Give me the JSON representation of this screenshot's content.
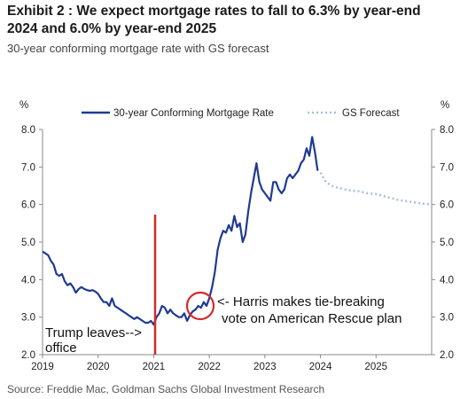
{
  "header": {
    "title": "Exhibit 2 : We expect mortgage rates to fall to 6.3% by year-end 2024 and 6.0% by year-end 2025",
    "subtitle": "30-year conforming mortgage rate with GS forecast"
  },
  "footer": {
    "source": "Source: Freddie Mac, Goldman Sachs Global Investment Research"
  },
  "chart_data": {
    "type": "line",
    "title": "Exhibit 2 : We expect mortgage rates to fall to 6.3% by year-end 2024 and 6.0% by year-end 2025",
    "subtitle": "30-year conforming mortgage rate with GS forecast",
    "ylabel_left": "%",
    "ylabel_right": "%",
    "xlim": [
      2019.0,
      2026.0
    ],
    "ylim": [
      2.0,
      8.0
    ],
    "x_ticks": [
      "2019",
      "2020",
      "2021",
      "2022",
      "2023",
      "2024",
      "2025"
    ],
    "y_ticks": [
      "2.0",
      "3.0",
      "4.0",
      "5.0",
      "6.0",
      "7.0",
      "8.0"
    ],
    "grid": false,
    "legend_position": "top",
    "colors": {
      "actual": "#1f3a93",
      "forecast": "#a9bfdc",
      "marker": "#d42a2a"
    },
    "series": [
      {
        "name": "30-year Conforming Mortgage Rate",
        "style": "solid",
        "x": [
          2019.0,
          2019.05,
          2019.1,
          2019.15,
          2019.2,
          2019.25,
          2019.3,
          2019.35,
          2019.4,
          2019.45,
          2019.5,
          2019.55,
          2019.6,
          2019.65,
          2019.7,
          2019.75,
          2019.8,
          2019.85,
          2019.9,
          2019.95,
          2020.0,
          2020.05,
          2020.1,
          2020.15,
          2020.2,
          2020.25,
          2020.3,
          2020.35,
          2020.4,
          2020.45,
          2020.5,
          2020.55,
          2020.6,
          2020.65,
          2020.7,
          2020.75,
          2020.8,
          2020.85,
          2020.9,
          2020.95,
          2021.0,
          2021.05,
          2021.1,
          2021.15,
          2021.2,
          2021.25,
          2021.3,
          2021.35,
          2021.4,
          2021.45,
          2021.5,
          2021.55,
          2021.6,
          2021.65,
          2021.7,
          2021.75,
          2021.8,
          2021.85,
          2021.9,
          2021.95,
          2022.0,
          2022.05,
          2022.1,
          2022.15,
          2022.2,
          2022.25,
          2022.3,
          2022.35,
          2022.4,
          2022.45,
          2022.5,
          2022.55,
          2022.6,
          2022.65,
          2022.7,
          2022.75,
          2022.8,
          2022.85,
          2022.9,
          2022.95,
          2023.0,
          2023.05,
          2023.1,
          2023.15,
          2023.2,
          2023.25,
          2023.3,
          2023.35,
          2023.4,
          2023.45,
          2023.5,
          2023.55,
          2023.6,
          2023.65,
          2023.7,
          2023.75,
          2023.8,
          2023.85,
          2023.9,
          2023.95
        ],
        "y": [
          4.75,
          4.7,
          4.65,
          4.5,
          4.4,
          4.15,
          4.1,
          4.15,
          3.95,
          3.85,
          3.9,
          3.8,
          3.65,
          3.75,
          3.8,
          3.75,
          3.72,
          3.7,
          3.72,
          3.68,
          3.62,
          3.5,
          3.4,
          3.4,
          3.3,
          3.5,
          3.3,
          3.25,
          3.2,
          3.15,
          3.1,
          3.05,
          3.0,
          2.95,
          3.0,
          2.95,
          2.9,
          2.85,
          2.85,
          2.9,
          2.8,
          3.0,
          3.1,
          3.3,
          3.25,
          3.1,
          3.2,
          3.1,
          3.05,
          3.0,
          3.0,
          3.1,
          2.9,
          3.05,
          3.15,
          3.2,
          3.3,
          3.25,
          3.4,
          3.3,
          3.5,
          3.8,
          4.2,
          4.8,
          5.1,
          5.3,
          5.25,
          5.45,
          5.3,
          5.7,
          5.4,
          5.5,
          5.0,
          5.2,
          5.8,
          6.3,
          6.7,
          7.1,
          6.6,
          6.4,
          6.3,
          6.2,
          6.1,
          6.6,
          6.6,
          6.4,
          6.3,
          6.4,
          6.7,
          6.8,
          6.7,
          6.8,
          6.9,
          7.1,
          7.2,
          7.5,
          7.3,
          7.8,
          7.4,
          6.9
        ]
      },
      {
        "name": "GS Forecast",
        "style": "dotted",
        "x": [
          2024.0,
          2024.1,
          2024.2,
          2024.3,
          2024.5,
          2024.7,
          2024.85,
          2025.0,
          2025.2,
          2025.4,
          2025.6,
          2025.8,
          2026.0
        ],
        "y": [
          6.85,
          6.6,
          6.5,
          6.45,
          6.38,
          6.35,
          6.3,
          6.28,
          6.2,
          6.12,
          6.08,
          6.03,
          6.0
        ]
      }
    ],
    "annotations": [
      {
        "text": "Trump leaves-->",
        "type": "vertical-line",
        "x": 2021.0
      },
      {
        "text": "office"
      },
      {
        "text": "<- Harris makes tie-breaking",
        "type": "circle",
        "x": 2021.85,
        "y": 3.3
      },
      {
        "text": "vote on American Rescue plan"
      }
    ]
  }
}
